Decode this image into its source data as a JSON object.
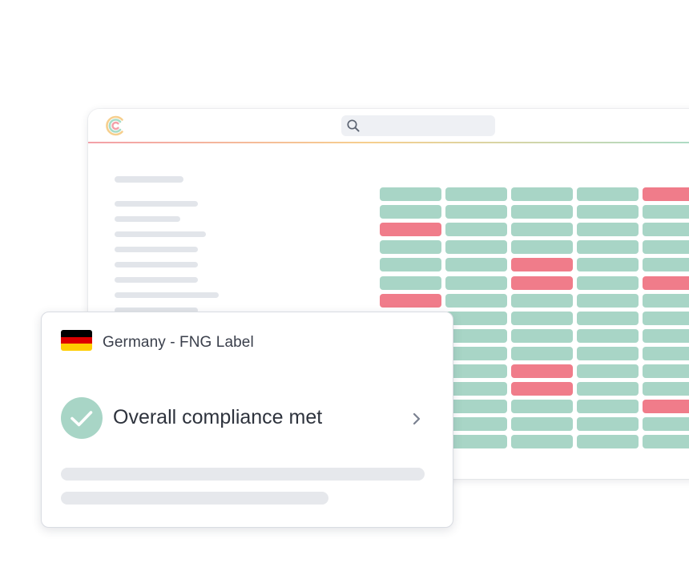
{
  "app": {
    "logo_icon": "brand-c-logo-icon",
    "search": {
      "icon": "search-icon",
      "placeholder": ""
    },
    "accent_gradient": [
      "#f3a0a8",
      "#f6cf8e",
      "#a8dcc8"
    ]
  },
  "compliance_matrix": {
    "pass_color": "#a8d5c6",
    "fail_color": "#f07c8a",
    "columns_visible": 5,
    "rows": [
      [
        "pass",
        "pass",
        "pass",
        "pass",
        "fail"
      ],
      [
        "pass",
        "pass",
        "pass",
        "pass",
        "pass"
      ],
      [
        "fail",
        "pass",
        "pass",
        "pass",
        "pass"
      ],
      [
        "pass",
        "pass",
        "pass",
        "pass",
        "pass"
      ],
      [
        "pass",
        "pass",
        "fail",
        "pass",
        "pass"
      ],
      [
        "pass",
        "pass",
        "fail",
        "pass",
        "fail"
      ],
      [
        "fail",
        "pass",
        "pass",
        "pass",
        "pass"
      ],
      [
        "pass",
        "pass",
        "pass",
        "pass",
        "pass"
      ],
      [
        "pass",
        "pass",
        "pass",
        "pass",
        "pass"
      ],
      [
        "pass",
        "pass",
        "pass",
        "pass",
        "pass"
      ],
      [
        "pass",
        "pass",
        "fail",
        "pass",
        "pass"
      ],
      [
        "pass",
        "pass",
        "fail",
        "pass",
        "pass"
      ],
      [
        "pass",
        "pass",
        "pass",
        "pass",
        "fail"
      ],
      [
        "pass",
        "pass",
        "pass",
        "pass",
        "pass"
      ],
      [
        "pass",
        "pass",
        "pass",
        "pass",
        "pass"
      ]
    ]
  },
  "card": {
    "flag": {
      "icon": "germany-flag-icon",
      "colors": [
        "#000000",
        "#dd0000",
        "#ffce00"
      ]
    },
    "title": "Germany - FNG Label",
    "status_icon": "check-icon",
    "status_color": "#a8d5c6",
    "status_text": "Overall compliance met",
    "chevron_icon": "chevron-right-icon"
  }
}
